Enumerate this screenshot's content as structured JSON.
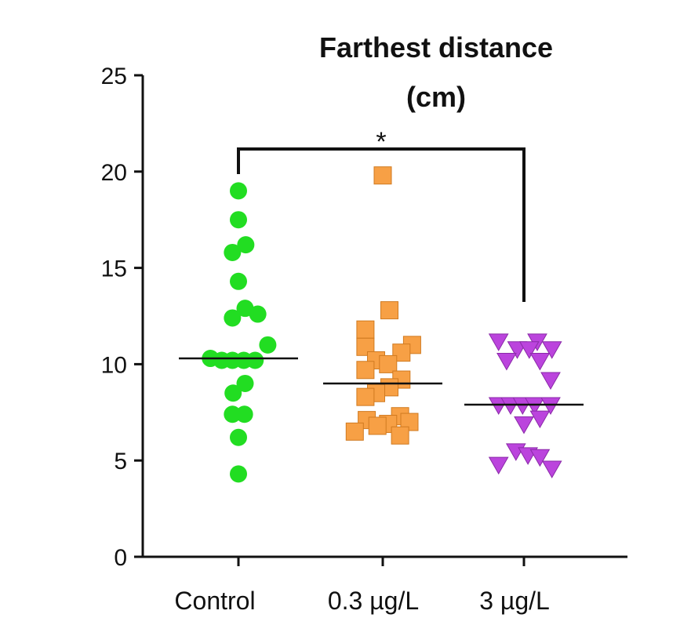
{
  "chart_data": {
    "type": "scatter",
    "subtype": "dot-plot",
    "title_lines": [
      "Farthest distance",
      "(cm)"
    ],
    "categories": [
      "Control",
      "0.3 µg/L",
      "3 µg/L"
    ],
    "ylim": [
      0,
      25
    ],
    "y_ticks": [
      0,
      5,
      10,
      15,
      20,
      25
    ],
    "grid": false,
    "significance": {
      "label": "*",
      "from": "Control",
      "to": "3 µg/L"
    },
    "series": [
      {
        "category": "Control",
        "marker": "circle",
        "color": "#22dd22",
        "mean": 10.3,
        "points": [
          {
            "y": 19.0,
            "offset": 0.0
          },
          {
            "y": 17.5,
            "offset": 0.0
          },
          {
            "y": 16.2,
            "offset": 0.55
          },
          {
            "y": 15.8,
            "offset": -0.45
          },
          {
            "y": 14.3,
            "offset": 0.0
          },
          {
            "y": 12.9,
            "offset": 0.5
          },
          {
            "y": 12.6,
            "offset": 1.45
          },
          {
            "y": 12.4,
            "offset": -0.45
          },
          {
            "y": 11.0,
            "offset": 2.2
          },
          {
            "y": 10.3,
            "offset": -2.1
          },
          {
            "y": 10.2,
            "offset": -1.25
          },
          {
            "y": 10.2,
            "offset": -0.45
          },
          {
            "y": 10.2,
            "offset": 0.4
          },
          {
            "y": 10.2,
            "offset": 1.25
          },
          {
            "y": 9.0,
            "offset": 0.5
          },
          {
            "y": 8.5,
            "offset": -0.4
          },
          {
            "y": 7.4,
            "offset": -0.45
          },
          {
            "y": 7.4,
            "offset": 0.45
          },
          {
            "y": 6.2,
            "offset": 0.0
          },
          {
            "y": 4.3,
            "offset": 0.0
          }
        ]
      },
      {
        "category": "0.3 µg/L",
        "marker": "square",
        "color": "#f7a045",
        "mean": 9.0,
        "points": [
          {
            "y": 19.8,
            "offset": 0.0
          },
          {
            "y": 12.8,
            "offset": 0.5
          },
          {
            "y": 11.8,
            "offset": -1.3
          },
          {
            "y": 11.0,
            "offset": 2.2
          },
          {
            "y": 10.9,
            "offset": -1.3
          },
          {
            "y": 10.6,
            "offset": 1.4
          },
          {
            "y": 10.2,
            "offset": -0.5
          },
          {
            "y": 10.0,
            "offset": 0.4
          },
          {
            "y": 9.7,
            "offset": -1.3
          },
          {
            "y": 9.2,
            "offset": 1.4
          },
          {
            "y": 8.8,
            "offset": 0.5
          },
          {
            "y": 8.5,
            "offset": -0.5
          },
          {
            "y": 8.3,
            "offset": -1.3
          },
          {
            "y": 7.3,
            "offset": 1.3
          },
          {
            "y": 7.1,
            "offset": -1.2
          },
          {
            "y": 7.0,
            "offset": 2.0
          },
          {
            "y": 6.9,
            "offset": 0.4
          },
          {
            "y": 6.8,
            "offset": -0.4
          },
          {
            "y": 6.5,
            "offset": -2.1
          },
          {
            "y": 6.3,
            "offset": 1.3
          }
        ]
      },
      {
        "category": "3 µg/L",
        "marker": "triangle-down",
        "color": "#bb44dd",
        "mean": 7.9,
        "points": [
          {
            "y": 11.2,
            "offset": -1.9
          },
          {
            "y": 11.2,
            "offset": 1.0
          },
          {
            "y": 10.8,
            "offset": -0.5
          },
          {
            "y": 10.8,
            "offset": 0.4
          },
          {
            "y": 10.8,
            "offset": 2.1
          },
          {
            "y": 10.2,
            "offset": -1.3
          },
          {
            "y": 10.2,
            "offset": 1.2
          },
          {
            "y": 9.2,
            "offset": 2.0
          },
          {
            "y": 7.9,
            "offset": -1.9
          },
          {
            "y": 7.9,
            "offset": -1.0
          },
          {
            "y": 7.9,
            "offset": -0.1
          },
          {
            "y": 7.9,
            "offset": 0.8
          },
          {
            "y": 7.9,
            "offset": 2.0
          },
          {
            "y": 7.2,
            "offset": 1.2
          },
          {
            "y": 6.9,
            "offset": 0.0
          },
          {
            "y": 5.5,
            "offset": -0.6
          },
          {
            "y": 5.3,
            "offset": 0.3
          },
          {
            "y": 5.2,
            "offset": 1.2
          },
          {
            "y": 4.8,
            "offset": -1.9
          },
          {
            "y": 4.6,
            "offset": 2.1
          }
        ]
      }
    ]
  }
}
